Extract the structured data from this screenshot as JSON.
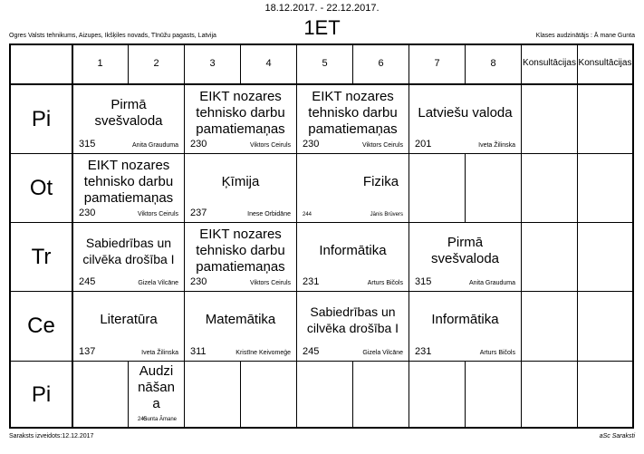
{
  "header": {
    "dates": "18.12.2017. - 22.12.2017.",
    "class_name": "1ET",
    "school": "Ogres Valsts tehnikums, Aizupes, Ikšķiles novads, Tīnūžu pagasts, Latvija",
    "class_teacher": "Klases audzinātājs : Ā mane Gunta"
  },
  "footer": {
    "created": "Saraksts izveidots:12.12.2017",
    "software": "aSc Saraksti"
  },
  "columns": [
    "1",
    "2",
    "3",
    "4",
    "5",
    "6",
    "7",
    "8",
    "Konsultācijas",
    "Konsultācijas"
  ],
  "days": [
    "Pi",
    "Ot",
    "Tr",
    "Ce",
    "Pi"
  ],
  "lessons": [
    {
      "subject": "Pirmā svešvaloda",
      "room": "315",
      "teacher": "Anita Grauduma"
    },
    {
      "subject": "EIKT nozares tehnisko darbu pamatiemaņas",
      "room": "230",
      "teacher": "Viktors Ceiruls"
    },
    {
      "subject": "EIKT nozares tehnisko darbu pamatiemaņas",
      "room": "230",
      "teacher": "Viktors Ceiruls"
    },
    {
      "subject": "Latviešu valoda",
      "room": "201",
      "teacher": "Iveta Žilinska"
    },
    {
      "subject": "EIKT nozares tehnisko darbu pamatiemaņas",
      "room": "230",
      "teacher": "Viktors Ceiruls"
    },
    {
      "subject": "Ķīmija",
      "room": "237",
      "teacher": "Inese Orbidāne"
    },
    {
      "subject": "Fizika",
      "room": "244",
      "teacher": "Jānis Brūvers"
    },
    {
      "subject": "Sabiedrības un cilvēka drošība I",
      "room": "245",
      "teacher": "Gizela Vilcāne"
    },
    {
      "subject": "EIKT nozares tehnisko darbu pamatiemaņas",
      "room": "230",
      "teacher": "Viktors Ceiruls"
    },
    {
      "subject": "Informātika",
      "room": "231",
      "teacher": "Arturs Bičols"
    },
    {
      "subject": "Pirmā svešvaloda",
      "room": "315",
      "teacher": "Anita Grauduma"
    },
    {
      "subject": "Literatūra",
      "room": "137",
      "teacher": "Iveta Žilinska"
    },
    {
      "subject": "Matemātika",
      "room": "311",
      "teacher": "Kristīne Keivomeģe"
    },
    {
      "subject": "Sabiedrības un cilvēka drošība I",
      "room": "245",
      "teacher": "Gizela Vilcāne"
    },
    {
      "subject": "Informātika",
      "room": "231",
      "teacher": "Arturs Bičols"
    },
    {
      "subject": "Audzināšana",
      "room": "245",
      "teacher": "Gunta Āmane"
    }
  ]
}
